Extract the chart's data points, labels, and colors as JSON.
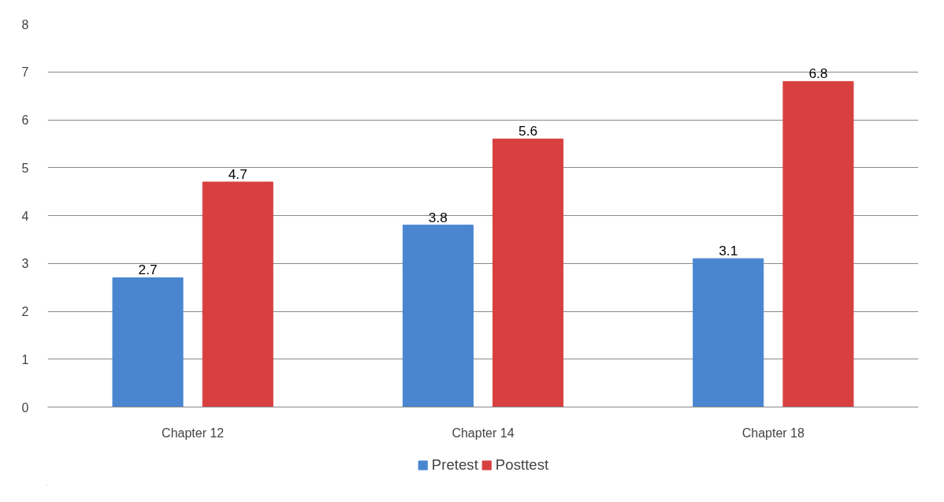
{
  "chart_data": {
    "type": "bar",
    "categories": [
      "Chapter 12",
      "Chapter 14",
      "Chapter 18"
    ],
    "series": [
      {
        "name": "Pretest",
        "color": "#4a86d0",
        "values": [
          2.7,
          3.8,
          3.1
        ]
      },
      {
        "name": "Posttest",
        "color": "#d84040",
        "values": [
          4.7,
          5.6,
          6.8
        ]
      }
    ],
    "ylim": [
      0,
      8
    ],
    "yticks": [
      0,
      1,
      2,
      3,
      4,
      5,
      6,
      7,
      8
    ],
    "grid": "y",
    "legend": "bottom",
    "data_labels": true
  }
}
